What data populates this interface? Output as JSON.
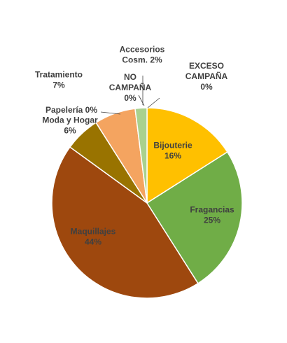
{
  "chart_data": {
    "type": "pie",
    "title": "",
    "series": [
      {
        "values": [
          16,
          25,
          44,
          6,
          0,
          7,
          0,
          2,
          0
        ],
        "categories": [
          "Bijouterie",
          "Fragancias",
          "Maquillajes",
          "Moda y Hogar",
          "Papelería",
          "Tratamiento",
          "NO CAMPAÑA",
          "Accesorios Cosm.",
          "EXCESO CAMPAÑA"
        ]
      }
    ],
    "slices": [
      {
        "name": "Bijouterie",
        "value": 16,
        "label_lines": [
          "Bijouterie",
          "16%"
        ],
        "color": "#FFC000"
      },
      {
        "name": "Fragancias",
        "value": 25,
        "label_lines": [
          "Fragancias",
          "25%"
        ],
        "color": "#70AD47"
      },
      {
        "name": "Maquillajes",
        "value": 44,
        "label_lines": [
          "Maquillajes",
          "44%"
        ],
        "color": "#9E480E"
      },
      {
        "name": "Moda y Hogar",
        "value": 6,
        "label_lines": [
          "Moda y Hogar",
          "6%"
        ],
        "color": "#997300"
      },
      {
        "name": "Papelería",
        "value": 0,
        "label_lines": [
          "Papelería 0%"
        ],
        "color": "#7F6000"
      },
      {
        "name": "Tratamiento",
        "value": 7,
        "label_lines": [
          "Tratamiento",
          "7%"
        ],
        "color": "#F4A460"
      },
      {
        "name": "NO CAMPAÑA",
        "value": 0,
        "label_lines": [
          "NO",
          "CAMPAÑA",
          "0%"
        ],
        "color": "#A5A5A5"
      },
      {
        "name": "Accesorios Cosm.",
        "value": 2,
        "label_lines": [
          "Accesorios",
          "Cosm. 2%"
        ],
        "color": "#A9D18E"
      },
      {
        "name": "EXCESO CAMPAÑA",
        "value": 0,
        "label_lines": [
          "EXCESO",
          "CAMPAÑA",
          "0%"
        ],
        "color": "#5B9BD5"
      }
    ],
    "start_angle_deg": 0,
    "direction": "clockwise",
    "legend": "none"
  }
}
